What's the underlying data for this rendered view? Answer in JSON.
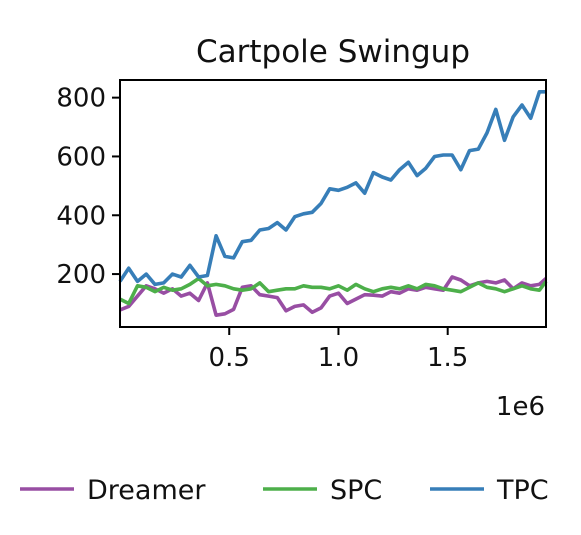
{
  "chart_data": {
    "type": "line",
    "title": "Cartpole Swingup",
    "xlabel": "",
    "ylabel": "",
    "x_multiplier_label": "1e6",
    "xlim": [
      0,
      1.95
    ],
    "ylim": [
      20,
      860
    ],
    "xticks": [
      0.5,
      1.0,
      1.5
    ],
    "xtick_labels": [
      "0.5",
      "1.0",
      "1.5"
    ],
    "yticks": [
      200,
      400,
      600,
      800
    ],
    "ytick_labels": [
      "200",
      "400",
      "600",
      "800"
    ],
    "grid": false,
    "legend_position": "bottom",
    "x": [
      0.0,
      0.04,
      0.08,
      0.12,
      0.16,
      0.2,
      0.24,
      0.28,
      0.32,
      0.36,
      0.4,
      0.44,
      0.48,
      0.52,
      0.56,
      0.6,
      0.64,
      0.68,
      0.72,
      0.76,
      0.8,
      0.84,
      0.88,
      0.92,
      0.96,
      1.0,
      1.04,
      1.08,
      1.12,
      1.16,
      1.2,
      1.24,
      1.28,
      1.32,
      1.36,
      1.4,
      1.44,
      1.48,
      1.52,
      1.56,
      1.6,
      1.64,
      1.68,
      1.72,
      1.76,
      1.8,
      1.84,
      1.88,
      1.92,
      1.95
    ],
    "series": [
      {
        "name": "Dreamer",
        "color": "#984ea3",
        "values": [
          78,
          90,
          125,
          160,
          150,
          135,
          150,
          125,
          135,
          110,
          170,
          60,
          65,
          80,
          155,
          160,
          130,
          125,
          120,
          75,
          90,
          95,
          70,
          85,
          125,
          135,
          100,
          115,
          130,
          128,
          125,
          140,
          135,
          150,
          145,
          155,
          150,
          145,
          190,
          180,
          160,
          170,
          175,
          170,
          180,
          150,
          170,
          160,
          165,
          185
        ]
      },
      {
        "name": "SPC",
        "color": "#4daf4a",
        "values": [
          115,
          100,
          160,
          155,
          140,
          155,
          145,
          150,
          165,
          185,
          160,
          165,
          160,
          150,
          145,
          150,
          170,
          140,
          145,
          150,
          150,
          160,
          155,
          155,
          150,
          160,
          145,
          165,
          150,
          140,
          150,
          155,
          150,
          160,
          150,
          165,
          160,
          150,
          145,
          140,
          155,
          170,
          155,
          150,
          140,
          150,
          160,
          150,
          145,
          175
        ]
      },
      {
        "name": "TPC",
        "color": "#377eb8",
        "values": [
          175,
          220,
          175,
          200,
          165,
          170,
          200,
          190,
          230,
          190,
          195,
          330,
          260,
          255,
          310,
          315,
          350,
          355,
          375,
          350,
          395,
          405,
          410,
          440,
          490,
          485,
          495,
          510,
          475,
          545,
          530,
          520,
          555,
          580,
          535,
          560,
          600,
          605,
          605,
          555,
          620,
          625,
          680,
          760,
          655,
          735,
          775,
          730,
          820,
          820
        ]
      }
    ]
  }
}
